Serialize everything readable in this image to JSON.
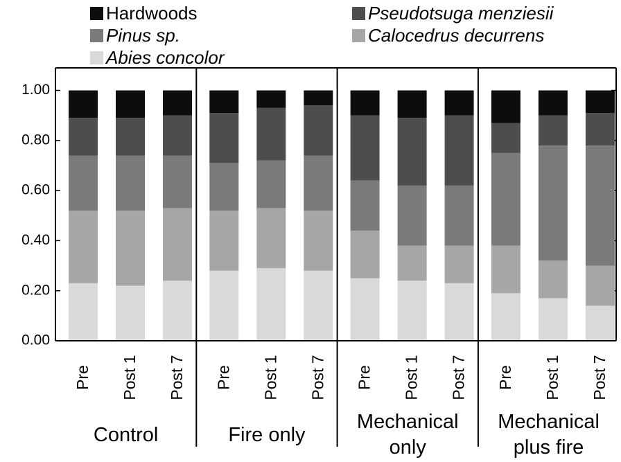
{
  "chart_data": {
    "type": "stacked_bar",
    "categories": [
      "Pre",
      "Post 1",
      "Post 7",
      "Pre",
      "Post 1",
      "Post 7",
      "Pre",
      "Post 1",
      "Post 7",
      "Pre",
      "Post 1",
      "Post 7"
    ],
    "groups": [
      "Control",
      "Fire only",
      "Mechanical only",
      "Mechanical plus fire"
    ],
    "series": [
      {
        "name": "Hardwoods",
        "color": "#0d0d0d",
        "values": [
          0.11,
          0.11,
          0.1,
          0.09,
          0.07,
          0.06,
          0.1,
          0.11,
          0.1,
          0.13,
          0.1,
          0.09
        ]
      },
      {
        "name": "Pseudotsuga menziesii",
        "color": "#4d4d4d",
        "values": [
          0.15,
          0.15,
          0.16,
          0.2,
          0.21,
          0.2,
          0.26,
          0.27,
          0.28,
          0.12,
          0.12,
          0.13
        ]
      },
      {
        "name": "Pinus sp.",
        "color": "#7a7a7a",
        "values": [
          0.22,
          0.22,
          0.21,
          0.19,
          0.19,
          0.22,
          0.2,
          0.24,
          0.24,
          0.37,
          0.46,
          0.48
        ]
      },
      {
        "name": "Calocedrus decurrens",
        "color": "#a6a6a6",
        "values": [
          0.29,
          0.3,
          0.29,
          0.24,
          0.24,
          0.24,
          0.19,
          0.14,
          0.15,
          0.19,
          0.15,
          0.16
        ]
      },
      {
        "name": "Abies concolor",
        "color": "#d9d9d9",
        "values": [
          0.23,
          0.22,
          0.24,
          0.28,
          0.29,
          0.28,
          0.25,
          0.24,
          0.23,
          0.19,
          0.17,
          0.14
        ]
      }
    ],
    "ylim": [
      0,
      1.09
    ],
    "yticks": [
      {
        "value": 0,
        "label": "0.00"
      },
      {
        "value": 0.2,
        "label": "0.20"
      },
      {
        "value": 0.4,
        "label": "0.40"
      },
      {
        "value": 0.6,
        "label": "0.60"
      },
      {
        "value": 0.8,
        "label": "0.80"
      },
      {
        "value": 1.0,
        "label": "1.00"
      }
    ]
  }
}
